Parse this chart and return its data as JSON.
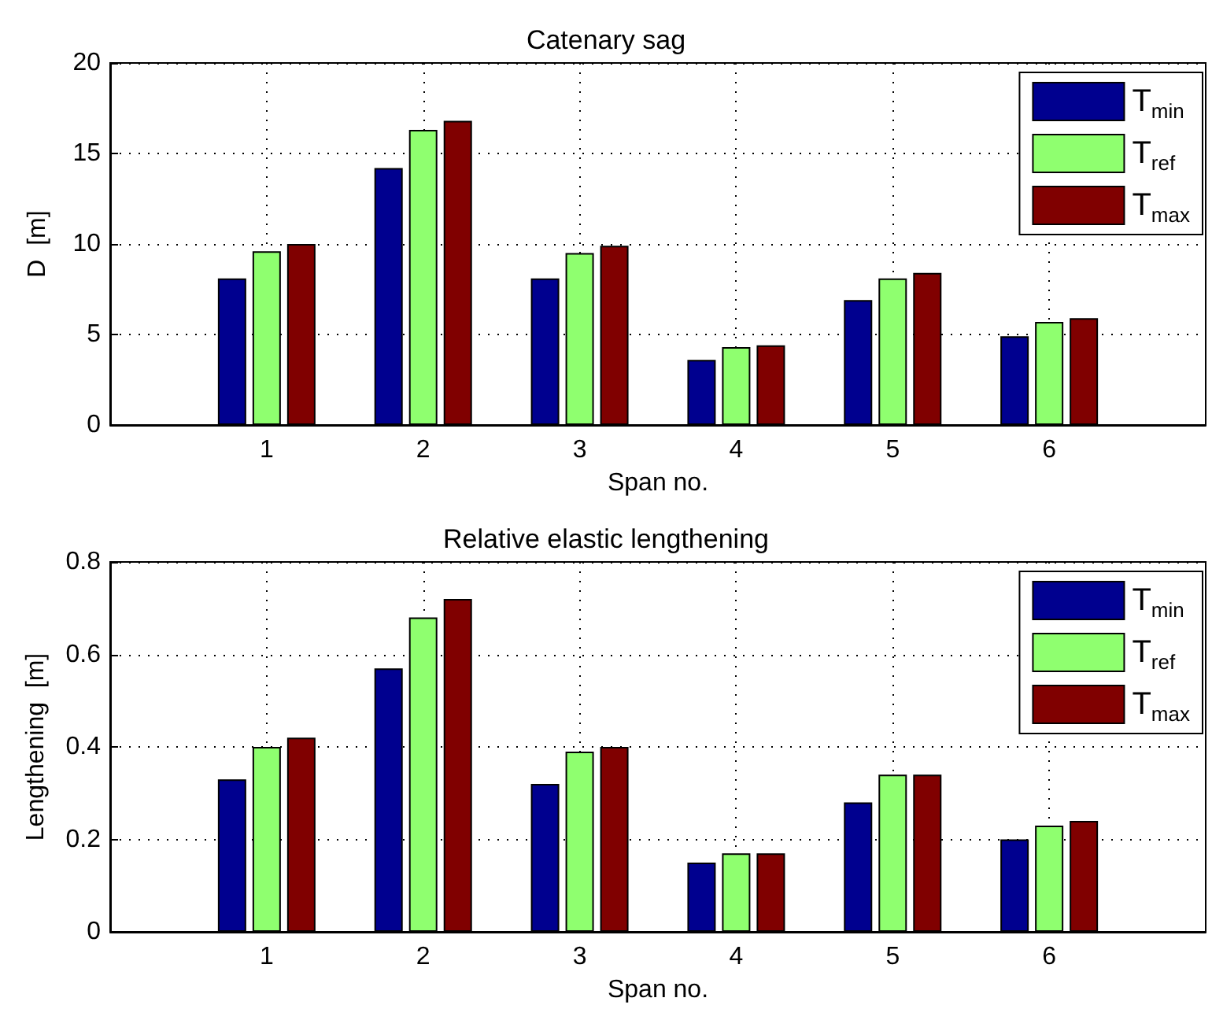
{
  "chart_data": [
    {
      "type": "bar",
      "title": "Catenary sag",
      "xlabel": "Span no.",
      "ylabel": "D  [m]",
      "x": [
        1,
        2,
        3,
        4,
        5,
        6
      ],
      "xlim": [
        0,
        7
      ],
      "xticks": [
        1,
        2,
        3,
        4,
        5,
        6
      ],
      "ylim": [
        0,
        20
      ],
      "yticks": [
        0,
        5,
        10,
        15,
        20
      ],
      "grid": true,
      "legend": "top right",
      "series": [
        {
          "name": "T$_{min}$",
          "color": "#00008f",
          "values": [
            8.1,
            14.2,
            8.1,
            3.6,
            6.9,
            4.9
          ]
        },
        {
          "name": "T$_{ref}$",
          "color": "#8fff6f",
          "values": [
            9.6,
            16.3,
            9.5,
            4.3,
            8.1,
            5.7
          ]
        },
        {
          "name": "T$_{max}$",
          "color": "#800000",
          "values": [
            10.0,
            16.8,
            9.9,
            4.4,
            8.4,
            5.9
          ]
        }
      ]
    },
    {
      "type": "bar",
      "title": "Relative elastic lengthening",
      "xlabel": "Span no.",
      "ylabel": "Lengthening  [m]",
      "x": [
        1,
        2,
        3,
        4,
        5,
        6
      ],
      "xlim": [
        0,
        7
      ],
      "xticks": [
        1,
        2,
        3,
        4,
        5,
        6
      ],
      "ylim": [
        0,
        0.8
      ],
      "yticks": [
        0,
        0.2,
        0.4,
        0.6,
        0.8
      ],
      "grid": true,
      "legend": "top right",
      "series": [
        {
          "name": "T$_{min}$",
          "color": "#00008f",
          "values": [
            0.33,
            0.57,
            0.32,
            0.15,
            0.28,
            0.2
          ]
        },
        {
          "name": "T$_{ref}$",
          "color": "#8fff6f",
          "values": [
            0.4,
            0.68,
            0.39,
            0.17,
            0.34,
            0.23
          ]
        },
        {
          "name": "T$_{max}$",
          "color": "#800000",
          "values": [
            0.42,
            0.72,
            0.4,
            0.17,
            0.34,
            0.24
          ]
        }
      ]
    }
  ]
}
